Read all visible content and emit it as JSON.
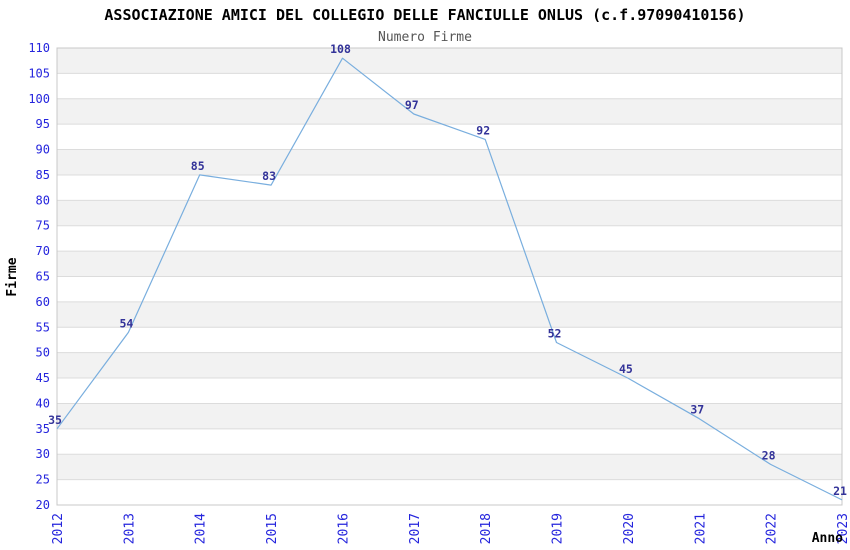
{
  "chart_data": {
    "type": "line",
    "title": "ASSOCIAZIONE AMICI DEL COLLEGIO DELLE FANCIULLE ONLUS (c.f.97090410156)",
    "subtitle": "Numero Firme",
    "xlabel": "Anno",
    "ylabel": "Firme",
    "categories": [
      "2012",
      "2013",
      "2014",
      "2015",
      "2016",
      "2017",
      "2018",
      "2019",
      "2020",
      "2021",
      "2022",
      "2023"
    ],
    "values": [
      35,
      54,
      85,
      83,
      108,
      97,
      92,
      52,
      45,
      37,
      28,
      21
    ],
    "ylim": [
      20,
      110
    ],
    "ytick_step": 5,
    "grid": "horizontal-with-alternating-bands",
    "legend": "none",
    "point_labels_shown": true
  },
  "colors": {
    "background": "#ffffff",
    "line": "#79aede",
    "point_label": "#333399",
    "tick_label": "#2525dd",
    "title": "#000000",
    "subtitle": "#555555",
    "axis_label": "#000000",
    "band": "#f2f2f2",
    "gridline": "#dcdcdc",
    "border": "#c8c8c8"
  }
}
